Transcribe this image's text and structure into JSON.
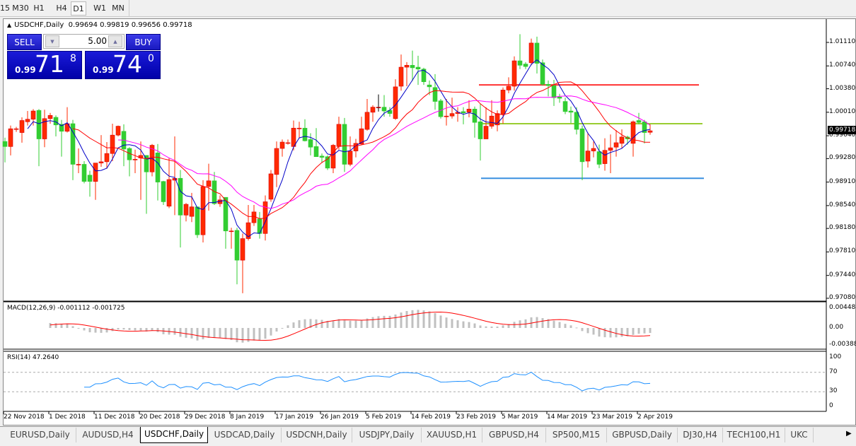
{
  "timeframes": {
    "items": [
      "15",
      "M30",
      "H1",
      "H4",
      "D1",
      "W1",
      "MN"
    ],
    "selected": "D1"
  },
  "chart_window": {
    "symbol_title": "USDCHF,Daily",
    "ohlc_text": "0.99694 0.99819 0.99656 0.99718"
  },
  "trade_panel": {
    "sell_label": "SELL",
    "buy_label": "BUY",
    "lot": "5.00",
    "sell_prefix": "0.99",
    "sell_big": "71",
    "sell_sup": "8",
    "buy_prefix": "0.99",
    "buy_big": "74",
    "buy_sup": "0",
    "down_arrow": "▼",
    "up_arrow": "▲"
  },
  "tabs": [
    {
      "label": "EURUSD,Daily"
    },
    {
      "label": "AUDUSD,H4"
    },
    {
      "label": "USDCHF,Daily",
      "active": true
    },
    {
      "label": "USDCAD,Daily"
    },
    {
      "label": "USDCNH,Daily"
    },
    {
      "label": "USDJPY,Daily"
    },
    {
      "label": "XAUUSD,H1"
    },
    {
      "label": "GBPUSD,H4"
    },
    {
      "label": "SP500,M15"
    },
    {
      "label": "GBPUSD,Daily"
    },
    {
      "label": "DJ30,H4"
    },
    {
      "label": "TECH100,H1"
    },
    {
      "label": "UKC"
    }
  ],
  "colors": {
    "bull": "#ff2a00",
    "bear": "#32cd32",
    "ma_fast": "#0000c8",
    "ma_mid": "#ff0000",
    "ma_slow": "#ff00ff",
    "resistance": "#ff3333",
    "pivot": "#9acd32",
    "support": "#3a8fe0",
    "macd_hist": "#c0c0c0",
    "macd_signal": "#ff0000",
    "rsi": "#1e90ff"
  },
  "chart_data": [
    {
      "type": "candlestick",
      "title": "USDCHF,Daily",
      "price_ticks": [
        "1.01110",
        "1.00740",
        "1.00380",
        "1.00010",
        "0.99640",
        "0.99280",
        "0.98910",
        "0.98540",
        "0.98180",
        "0.97810",
        "0.97440",
        "0.97080"
      ],
      "current_price": "0.99718",
      "ylim": [
        0.9708,
        1.0111
      ],
      "date_labels": [
        "22 Nov 2018",
        "1 Dec 2018",
        "11 Dec 2018",
        "20 Dec 2018",
        "29 Dec 2018",
        "8 Jan 2019",
        "17 Jan 2019",
        "26 Jan 2019",
        "5 Feb 2019",
        "14 Feb 2019",
        "23 Feb 2019",
        "5 Mar 2019",
        "14 Mar 2019",
        "23 Mar 2019",
        "2 Apr 2019"
      ],
      "horizontal_lines": [
        {
          "price": 1.0044,
          "role": "resistance"
        },
        {
          "price": 0.9983,
          "role": "pivot"
        },
        {
          "price": 0.9897,
          "role": "support"
        }
      ],
      "ohlc": [
        [
          0.9955,
          0.9961,
          0.9922,
          0.9947
        ],
        [
          0.9947,
          0.998,
          0.9933,
          0.9975
        ],
        [
          0.9974,
          0.9978,
          0.997,
          0.9975
        ],
        [
          0.9969,
          0.9993,
          0.9953,
          0.9988
        ],
        [
          0.9986,
          1.0003,
          0.998,
          0.999
        ],
        [
          0.999,
          1.0006,
          0.998,
          1.0003
        ],
        [
          1.0004,
          1.0006,
          0.9916,
          0.9959
        ],
        [
          0.9959,
          1.0005,
          0.9946,
          0.9991
        ],
        [
          0.9991,
          1.0,
          0.9983,
          0.9996
        ],
        [
          0.9993,
          0.9996,
          0.9963,
          0.9981
        ],
        [
          0.9982,
          0.9989,
          0.9931,
          0.9971
        ],
        [
          0.9971,
          1.0009,
          0.9969,
          0.9983
        ],
        [
          0.9983,
          0.9989,
          0.9894,
          0.9919
        ],
        [
          0.9919,
          0.9944,
          0.9905,
          0.9919
        ],
        [
          0.9919,
          0.9924,
          0.9889,
          0.9892
        ],
        [
          0.9902,
          0.9909,
          0.9868,
          0.9892
        ],
        [
          0.9892,
          0.9921,
          0.9863,
          0.9921
        ],
        [
          0.9921,
          0.9965,
          0.9915,
          0.9923
        ],
        [
          0.9923,
          0.9954,
          0.9912,
          0.9936
        ],
        [
          0.9936,
          0.9983,
          0.9924,
          0.9965
        ],
        [
          0.9965,
          0.998,
          0.9963,
          0.9979
        ],
        [
          0.9971,
          0.9982,
          0.9916,
          0.9943
        ],
        [
          0.9944,
          0.9946,
          0.99,
          0.9926
        ],
        [
          0.9927,
          0.9942,
          0.9905,
          0.9927
        ],
        [
          0.9929,
          0.9955,
          0.9863,
          0.9933
        ],
        [
          0.9933,
          0.9933,
          0.9841,
          0.9907
        ],
        [
          0.9907,
          0.9951,
          0.99,
          0.9949
        ],
        [
          0.9937,
          0.9951,
          0.9862,
          0.9891
        ],
        [
          0.9892,
          0.9893,
          0.9855,
          0.986
        ],
        [
          0.9853,
          0.9929,
          0.985,
          0.9895
        ],
        [
          0.9894,
          0.9963,
          0.9839,
          0.9897
        ],
        [
          0.9897,
          0.991,
          0.9788,
          0.9839
        ],
        [
          0.9839,
          0.9858,
          0.9829,
          0.9856
        ],
        [
          0.9837,
          0.9874,
          0.9828,
          0.9852
        ],
        [
          0.9852,
          0.9852,
          0.9803,
          0.9808
        ],
        [
          0.9808,
          0.9894,
          0.9796,
          0.9884
        ],
        [
          0.9884,
          0.992,
          0.9846,
          0.9893
        ],
        [
          0.9893,
          0.9907,
          0.9855,
          0.9857
        ],
        [
          0.9857,
          0.987,
          0.9852,
          0.9863
        ],
        [
          0.9867,
          0.9867,
          0.9786,
          0.9814
        ],
        [
          0.9814,
          0.9819,
          0.9786,
          0.9814
        ],
        [
          0.9815,
          0.9819,
          0.973,
          0.9768
        ],
        [
          0.9768,
          0.981,
          0.9716,
          0.9802
        ],
        [
          0.9802,
          0.9855,
          0.9799,
          0.9827
        ],
        [
          0.9827,
          0.9855,
          0.9822,
          0.9844
        ],
        [
          0.9833,
          0.9844,
          0.9802,
          0.981
        ],
        [
          0.981,
          0.987,
          0.9799,
          0.986
        ],
        [
          0.9864,
          0.991,
          0.986,
          0.9904
        ],
        [
          0.9903,
          0.9955,
          0.9883,
          0.9944
        ],
        [
          0.9944,
          0.9958,
          0.9931,
          0.9954
        ],
        [
          0.9953,
          0.9958,
          0.995,
          0.9953
        ],
        [
          0.9947,
          0.9988,
          0.9941,
          0.9976
        ],
        [
          0.9976,
          0.9986,
          0.996,
          0.9976
        ],
        [
          0.9976,
          0.999,
          0.9955,
          0.9956
        ],
        [
          0.9958,
          0.9968,
          0.9933,
          0.9946
        ],
        [
          0.9947,
          0.9976,
          0.9931,
          0.9931
        ],
        [
          0.9932,
          0.9936,
          0.9921,
          0.993
        ],
        [
          0.9931,
          0.9933,
          0.991,
          0.9913
        ],
        [
          0.9913,
          0.9951,
          0.9905,
          0.9949
        ],
        [
          0.9947,
          0.9994,
          0.9942,
          0.9982
        ],
        [
          0.9982,
          0.9992,
          0.9907,
          0.9919
        ],
        [
          0.9919,
          0.9963,
          0.9916,
          0.994
        ],
        [
          0.994,
          0.9959,
          0.993,
          0.9952
        ],
        [
          0.9951,
          0.9994,
          0.995,
          0.9975
        ],
        [
          0.9974,
          1.0022,
          0.9972,
          1.0001
        ],
        [
          1.0001,
          1.0012,
          0.9986,
          1.0009
        ],
        [
          1.0009,
          1.0029,
          1.0002,
          1.0009
        ],
        [
          1.0009,
          1.0028,
          0.9994,
          1.0003
        ],
        [
          1.0004,
          1.0009,
          0.9994,
          0.9999
        ],
        [
          0.9991,
          1.0053,
          0.9989,
          1.0041
        ],
        [
          1.0042,
          1.0092,
          1.0035,
          1.0072
        ],
        [
          1.0072,
          1.008,
          1.0042,
          1.0075
        ],
        [
          1.0075,
          1.0098,
          1.005,
          1.0071
        ],
        [
          1.0072,
          1.009,
          1.0044,
          1.0069
        ],
        [
          1.0069,
          1.0071,
          1.0044,
          1.0049
        ],
        [
          1.0044,
          1.0051,
          1.0028,
          1.0041
        ],
        [
          1.004,
          1.0061,
          1.0005,
          1.0018
        ],
        [
          1.0019,
          1.0022,
          0.9991,
          0.9994
        ],
        [
          0.9995,
          1.0022,
          0.998,
          0.9995
        ],
        [
          0.9995,
          1.0024,
          0.9991,
          0.9999
        ],
        [
          0.9999,
          1.0009,
          0.9986,
          1.0001
        ],
        [
          1.0002,
          1.0009,
          0.9982,
          1.0
        ],
        [
          1.0001,
          1.002,
          0.9993,
          1.0006
        ],
        [
          1.0006,
          1.001,
          0.9961,
          0.9985
        ],
        [
          0.9986,
          1.0014,
          0.9925,
          0.9959
        ],
        [
          0.9959,
          1.0009,
          0.9959,
          0.9979
        ],
        [
          0.9979,
          1.002,
          0.9975,
          0.9995
        ],
        [
          0.9981,
          1.0004,
          0.9971,
          0.9999
        ],
        [
          0.9998,
          1.004,
          0.9983,
          1.0036
        ],
        [
          1.0036,
          1.0056,
          1.0031,
          1.0042
        ],
        [
          1.0042,
          1.0089,
          1.0035,
          1.0082
        ],
        [
          1.0082,
          1.0124,
          1.0069,
          1.0075
        ],
        [
          1.0077,
          1.008,
          1.0069,
          1.0073
        ],
        [
          1.0079,
          1.0117,
          1.0075,
          1.011
        ],
        [
          1.011,
          1.012,
          1.0062,
          1.0078
        ],
        [
          1.0079,
          1.0084,
          1.0043,
          1.0045
        ],
        [
          1.0045,
          1.0051,
          1.0026,
          1.0043
        ],
        [
          1.0043,
          1.0052,
          1.0011,
          1.0024
        ],
        [
          1.0025,
          1.003,
          1.0016,
          1.0023
        ],
        [
          1.0018,
          1.0024,
          0.9998,
          1.0002
        ],
        [
          1.0003,
          1.001,
          0.9984,
          1.0001
        ],
        [
          1.0001,
          1.0009,
          0.9966,
          0.9974
        ],
        [
          0.9975,
          0.998,
          0.9894,
          0.9923
        ],
        [
          0.9924,
          0.9969,
          0.9914,
          0.994
        ],
        [
          0.994,
          0.9955,
          0.993,
          0.9944
        ],
        [
          0.9939,
          0.995,
          0.9913,
          0.9919
        ],
        [
          0.992,
          0.996,
          0.9909,
          0.9941
        ],
        [
          0.9941,
          0.9966,
          0.9905,
          0.9945
        ],
        [
          0.9946,
          0.9973,
          0.9931,
          0.9953
        ],
        [
          0.9952,
          0.9974,
          0.9944,
          0.9962
        ],
        [
          0.9962,
          0.9964,
          0.995,
          0.9959
        ],
        [
          0.9952,
          0.9988,
          0.9931,
          0.9986
        ],
        [
          0.9988,
          1.0,
          0.9982,
          0.9985
        ],
        [
          0.9986,
          0.9989,
          0.9952,
          0.9969
        ],
        [
          0.99694,
          0.99819,
          0.99656,
          0.99718
        ]
      ]
    },
    {
      "type": "bar",
      "title": "MACD(12,26,9) -0.001112 -0.001725",
      "params": [
        12,
        26,
        9
      ],
      "ticks": [
        "0.004487",
        "0.00",
        "-0.003883"
      ],
      "ylim": [
        -0.003883,
        0.004487
      ]
    },
    {
      "type": "line",
      "title": "RSI(14) 47.2640",
      "period": 14,
      "ticks": [
        "100",
        "70",
        "30",
        "0"
      ],
      "ylim": [
        0,
        100
      ],
      "levels": [
        70,
        30
      ]
    }
  ]
}
